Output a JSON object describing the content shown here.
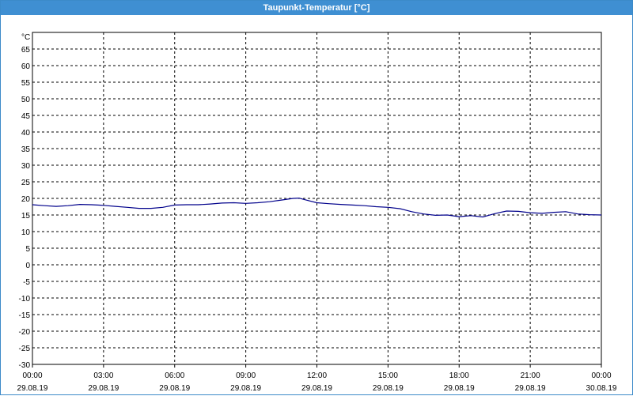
{
  "window": {
    "title": "Taupunkt-Temperatur [°C]"
  },
  "chart_data": {
    "type": "line",
    "title": "Taupunkt-Temperatur [°C]",
    "xlabel": "",
    "ylabel": "°C",
    "ylim": [
      -30,
      70
    ],
    "xlim_hours": [
      0,
      24
    ],
    "grid": true,
    "grid_style": "dashed",
    "y_ticks": [
      65,
      60,
      55,
      50,
      45,
      40,
      35,
      30,
      25,
      20,
      15,
      10,
      5,
      0,
      -5,
      -10,
      -15,
      -20,
      -25,
      -30
    ],
    "x_ticks": [
      {
        "time": "00:00",
        "date": "29.08.19"
      },
      {
        "time": "03:00",
        "date": "29.08.19"
      },
      {
        "time": "06:00",
        "date": "29.08.19"
      },
      {
        "time": "09:00",
        "date": "29.08.19"
      },
      {
        "time": "12:00",
        "date": "29.08.19"
      },
      {
        "time": "15:00",
        "date": "29.08.19"
      },
      {
        "time": "18:00",
        "date": "29.08.19"
      },
      {
        "time": "21:00",
        "date": "29.08.19"
      },
      {
        "time": "00:00",
        "date": "30.08.19"
      }
    ],
    "series": [
      {
        "color": "#00008b",
        "x": [
          "00:00",
          "00:30",
          "01:00",
          "01:30",
          "02:00",
          "02:30",
          "03:00",
          "03:30",
          "04:00",
          "04:30",
          "05:00",
          "05:30",
          "06:00",
          "06:30",
          "07:00",
          "07:30",
          "08:00",
          "08:30",
          "09:00",
          "09:30",
          "10:00",
          "10:30",
          "11:00",
          "11:15",
          "11:30",
          "12:00",
          "12:30",
          "13:00",
          "13:30",
          "14:00",
          "14:30",
          "15:00",
          "15:30",
          "16:00",
          "16:30",
          "17:00",
          "17:30",
          "18:00",
          "18:30",
          "19:00",
          "19:30",
          "20:00",
          "20:30",
          "21:00",
          "21:30",
          "22:00",
          "22:30",
          "23:00",
          "23:30",
          "24:00"
        ],
        "values": [
          18.1,
          17.8,
          17.6,
          17.8,
          18.2,
          18.1,
          17.9,
          17.6,
          17.3,
          17.0,
          17.0,
          17.3,
          18.0,
          18.1,
          18.1,
          18.3,
          18.6,
          18.7,
          18.5,
          18.7,
          19.0,
          19.5,
          20.0,
          20.1,
          19.6,
          18.7,
          18.4,
          18.2,
          18.0,
          17.8,
          17.5,
          17.3,
          16.9,
          16.0,
          15.3,
          14.9,
          15.0,
          14.5,
          14.8,
          14.4,
          15.4,
          16.2,
          16.1,
          15.7,
          15.5,
          15.8,
          16.0,
          15.3,
          15.1,
          15.0
        ]
      }
    ]
  }
}
